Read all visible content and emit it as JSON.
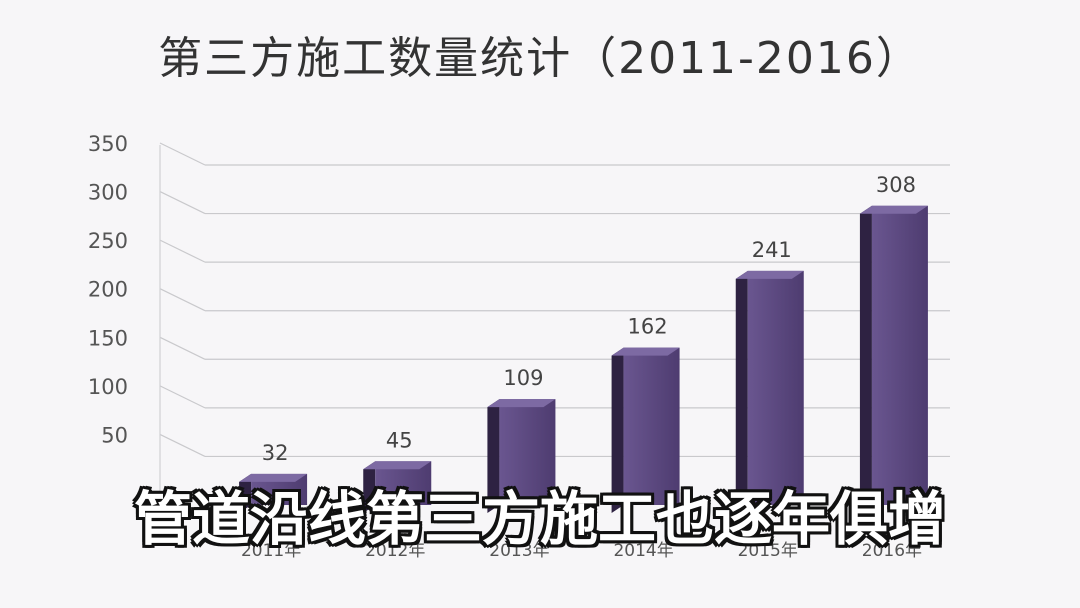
{
  "chart_data": {
    "type": "bar",
    "title": "第三方施工数量统计（2011-2016）",
    "categories": [
      "2011年",
      "2012年",
      "2013年",
      "2014年",
      "2015年",
      "2016年"
    ],
    "values": [
      32,
      45,
      109,
      162,
      241,
      308
    ],
    "ylim": [
      0,
      350
    ],
    "yticks": [
      50,
      100,
      150,
      200,
      250,
      300,
      350
    ],
    "grid": true,
    "legend": "none",
    "bar_color": "#5e4a80"
  },
  "caption": "管道沿线第三方施工也逐年俱增"
}
